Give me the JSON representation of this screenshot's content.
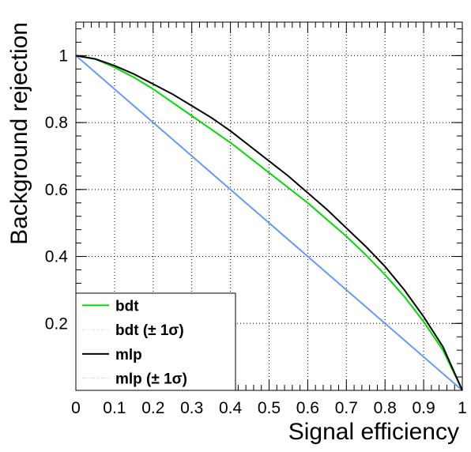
{
  "chart_data": {
    "type": "line",
    "title": "",
    "xlabel": "Signal efficiency",
    "ylabel": "Background rejection",
    "xlim": [
      0,
      1
    ],
    "ylim": [
      0,
      1.1
    ],
    "x_ticks": [
      0,
      0.1,
      0.2,
      0.3,
      0.4,
      0.5,
      0.6,
      0.7,
      0.8,
      0.9,
      1
    ],
    "y_ticks": [
      0.2,
      0.4,
      0.6,
      0.8,
      1
    ],
    "x_tick_labels": [
      "0",
      "0.1",
      "0.2",
      "0.3",
      "0.4",
      "0.5",
      "0.6",
      "0.7",
      "0.8",
      "0.9",
      "1"
    ],
    "y_tick_labels": [
      "0.2",
      "0.4",
      "0.6",
      "0.8",
      "1"
    ],
    "grid": true,
    "legend_position": "bottom-left",
    "series": [
      {
        "name": "bdt",
        "color": "#00dd00",
        "style": "solid",
        "x": [
          0,
          0.05,
          0.1,
          0.15,
          0.2,
          0.25,
          0.3,
          0.35,
          0.4,
          0.45,
          0.5,
          0.55,
          0.6,
          0.65,
          0.7,
          0.75,
          0.8,
          0.85,
          0.9,
          0.95,
          1
        ],
        "y": [
          1,
          0.99,
          0.965,
          0.935,
          0.9,
          0.86,
          0.82,
          0.78,
          0.74,
          0.695,
          0.65,
          0.605,
          0.56,
          0.51,
          0.46,
          0.405,
          0.345,
          0.28,
          0.205,
          0.12,
          0
        ]
      },
      {
        "name": "bdt (± 1σ)",
        "color": "#c8c8c8",
        "style": "dotted",
        "x": [],
        "y": []
      },
      {
        "name": "mlp",
        "color": "#000000",
        "style": "solid",
        "x": [
          0,
          0.05,
          0.1,
          0.15,
          0.2,
          0.25,
          0.3,
          0.35,
          0.4,
          0.45,
          0.5,
          0.55,
          0.6,
          0.65,
          0.7,
          0.75,
          0.8,
          0.85,
          0.9,
          0.95,
          1
        ],
        "y": [
          1,
          0.99,
          0.97,
          0.945,
          0.915,
          0.885,
          0.85,
          0.815,
          0.775,
          0.73,
          0.685,
          0.64,
          0.59,
          0.54,
          0.485,
          0.43,
          0.37,
          0.3,
          0.22,
          0.13,
          0
        ]
      },
      {
        "name": "mlp (± 1σ)",
        "color": "#c8c8c8",
        "style": "dotted",
        "x": [],
        "y": []
      },
      {
        "name": "",
        "color": "#6699ff",
        "style": "solid",
        "x": [
          0,
          1
        ],
        "y": [
          1,
          0
        ]
      }
    ]
  }
}
